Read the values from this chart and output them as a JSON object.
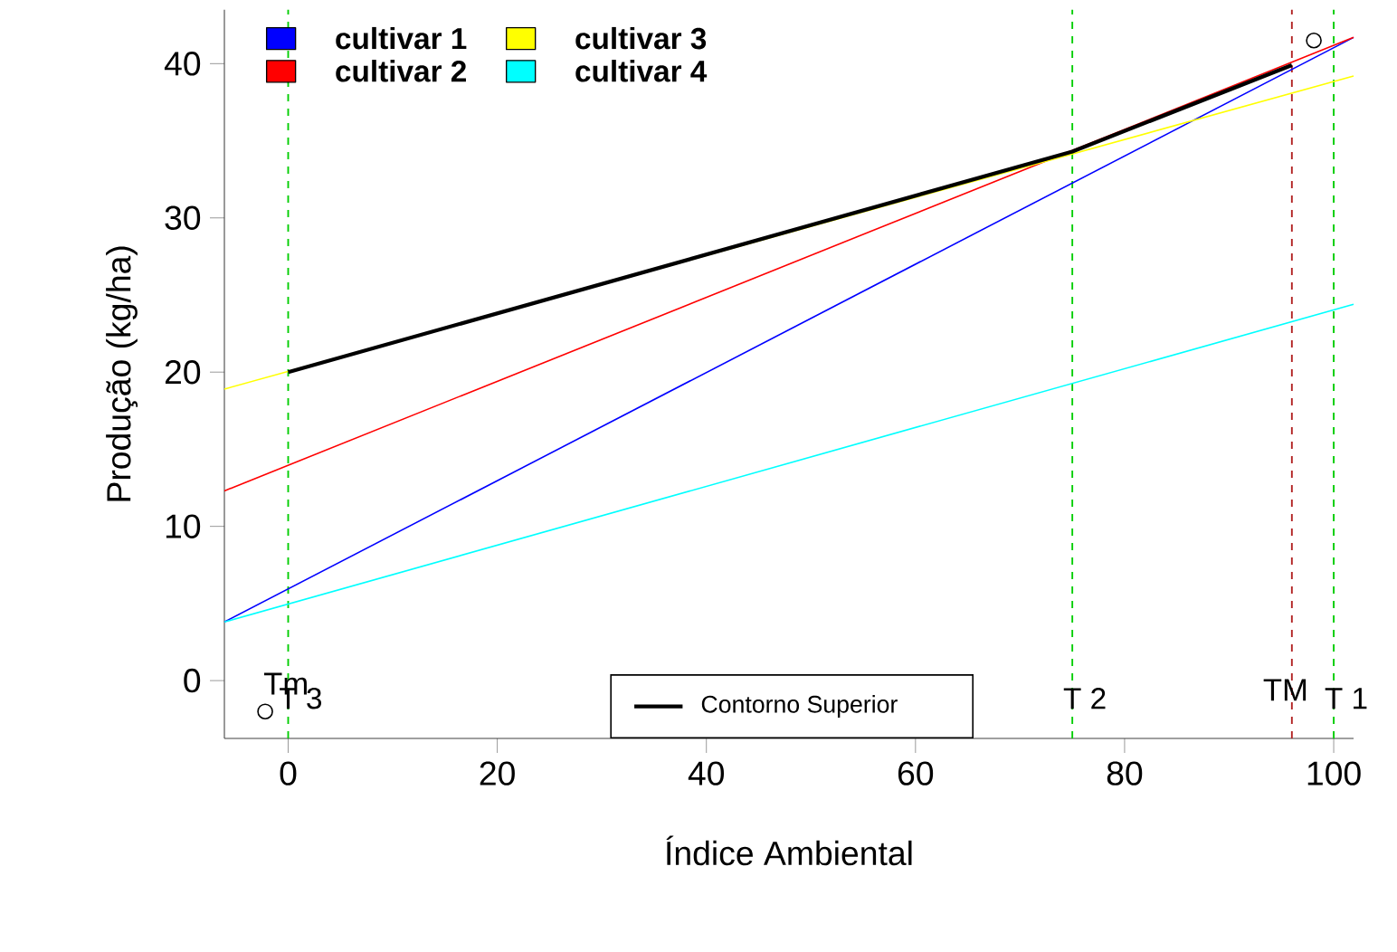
{
  "chart_data": {
    "type": "line",
    "xlabel": "Índice Ambiental",
    "ylabel": "Produção (kg/ha)",
    "xlim": [
      -6.1,
      101.9
    ],
    "ylim": [
      -3.75,
      43.5
    ],
    "xticks": [
      0,
      20,
      40,
      60,
      80,
      100
    ],
    "yticks": [
      0,
      10,
      20,
      30,
      40
    ],
    "grid": false,
    "legend": "top left",
    "line_style": "solid",
    "series": [
      {
        "name": "cultivar 1",
        "color": "#0000ff",
        "x": [
          -6.1,
          101.9
        ],
        "values": [
          3.8,
          41.7
        ]
      },
      {
        "name": "cultivar 2",
        "color": "#ff0000",
        "x": [
          -6.1,
          101.9
        ],
        "values": [
          12.3,
          41.7
        ]
      },
      {
        "name": "cultivar 3",
        "color": "#ffff00",
        "x": [
          -6.1,
          101.9
        ],
        "values": [
          18.9,
          39.2
        ]
      },
      {
        "name": "cultivar 4",
        "color": "#00ffff",
        "x": [
          -6.1,
          101.9
        ],
        "values": [
          3.8,
          24.4
        ]
      },
      {
        "name": "Contorno Superior",
        "color": "#000000",
        "x": [
          0,
          75,
          96
        ],
        "values": [
          20,
          34.3,
          39.9
        ]
      },
      {
        "type": "scatter",
        "color": "#000000",
        "marker": "circle",
        "x": [
          -2.2,
          98.1
        ],
        "values": [
          -2.0,
          41.5
        ]
      }
    ],
    "ref_lines": [
      {
        "axis": "x",
        "value": 0,
        "color": "#00cd00",
        "line_style": "dashed",
        "label": "T 3"
      },
      {
        "axis": "x",
        "value": 75,
        "color": "#00cd00",
        "line_style": "dashed",
        "label": "T 2"
      },
      {
        "axis": "x",
        "value": 96,
        "color": "#b22222",
        "line_style": "dashed"
      },
      {
        "axis": "x",
        "value": 100,
        "color": "#00cd00",
        "line_style": "dashed",
        "label": "T 1"
      }
    ],
    "annotations": [
      {
        "text": "Tm",
        "x": -0.2,
        "y": -0.2
      },
      {
        "text": "TM",
        "x": 95.4,
        "y": -0.6
      }
    ]
  }
}
